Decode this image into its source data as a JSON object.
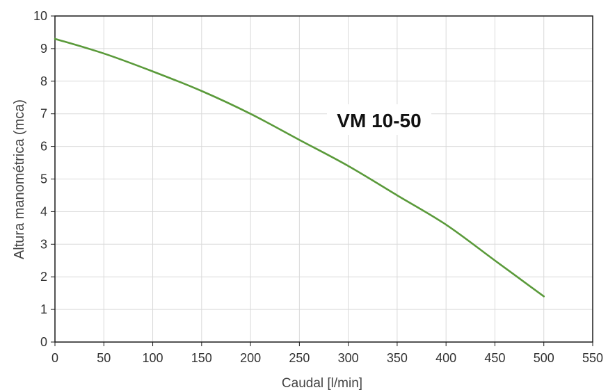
{
  "chart_data": {
    "type": "line",
    "title": "",
    "xlabel": "Caudal [l/min]",
    "ylabel": "Altura manométrica (mca)",
    "annotation": "VM 10-50",
    "xlim": [
      0,
      550
    ],
    "ylim": [
      0,
      10
    ],
    "xticks": [
      0,
      50,
      100,
      150,
      200,
      250,
      300,
      350,
      400,
      450,
      500,
      550
    ],
    "yticks": [
      0,
      1,
      2,
      3,
      4,
      5,
      6,
      7,
      8,
      9,
      10
    ],
    "grid": true,
    "legend": "none",
    "series": [
      {
        "color": "#5a9a3a",
        "x": [
          0,
          50,
          100,
          150,
          200,
          250,
          300,
          350,
          400,
          450,
          500
        ],
        "y": [
          9.3,
          8.85,
          8.3,
          7.7,
          7.0,
          6.2,
          5.4,
          4.5,
          3.6,
          2.5,
          1.4
        ]
      }
    ]
  }
}
